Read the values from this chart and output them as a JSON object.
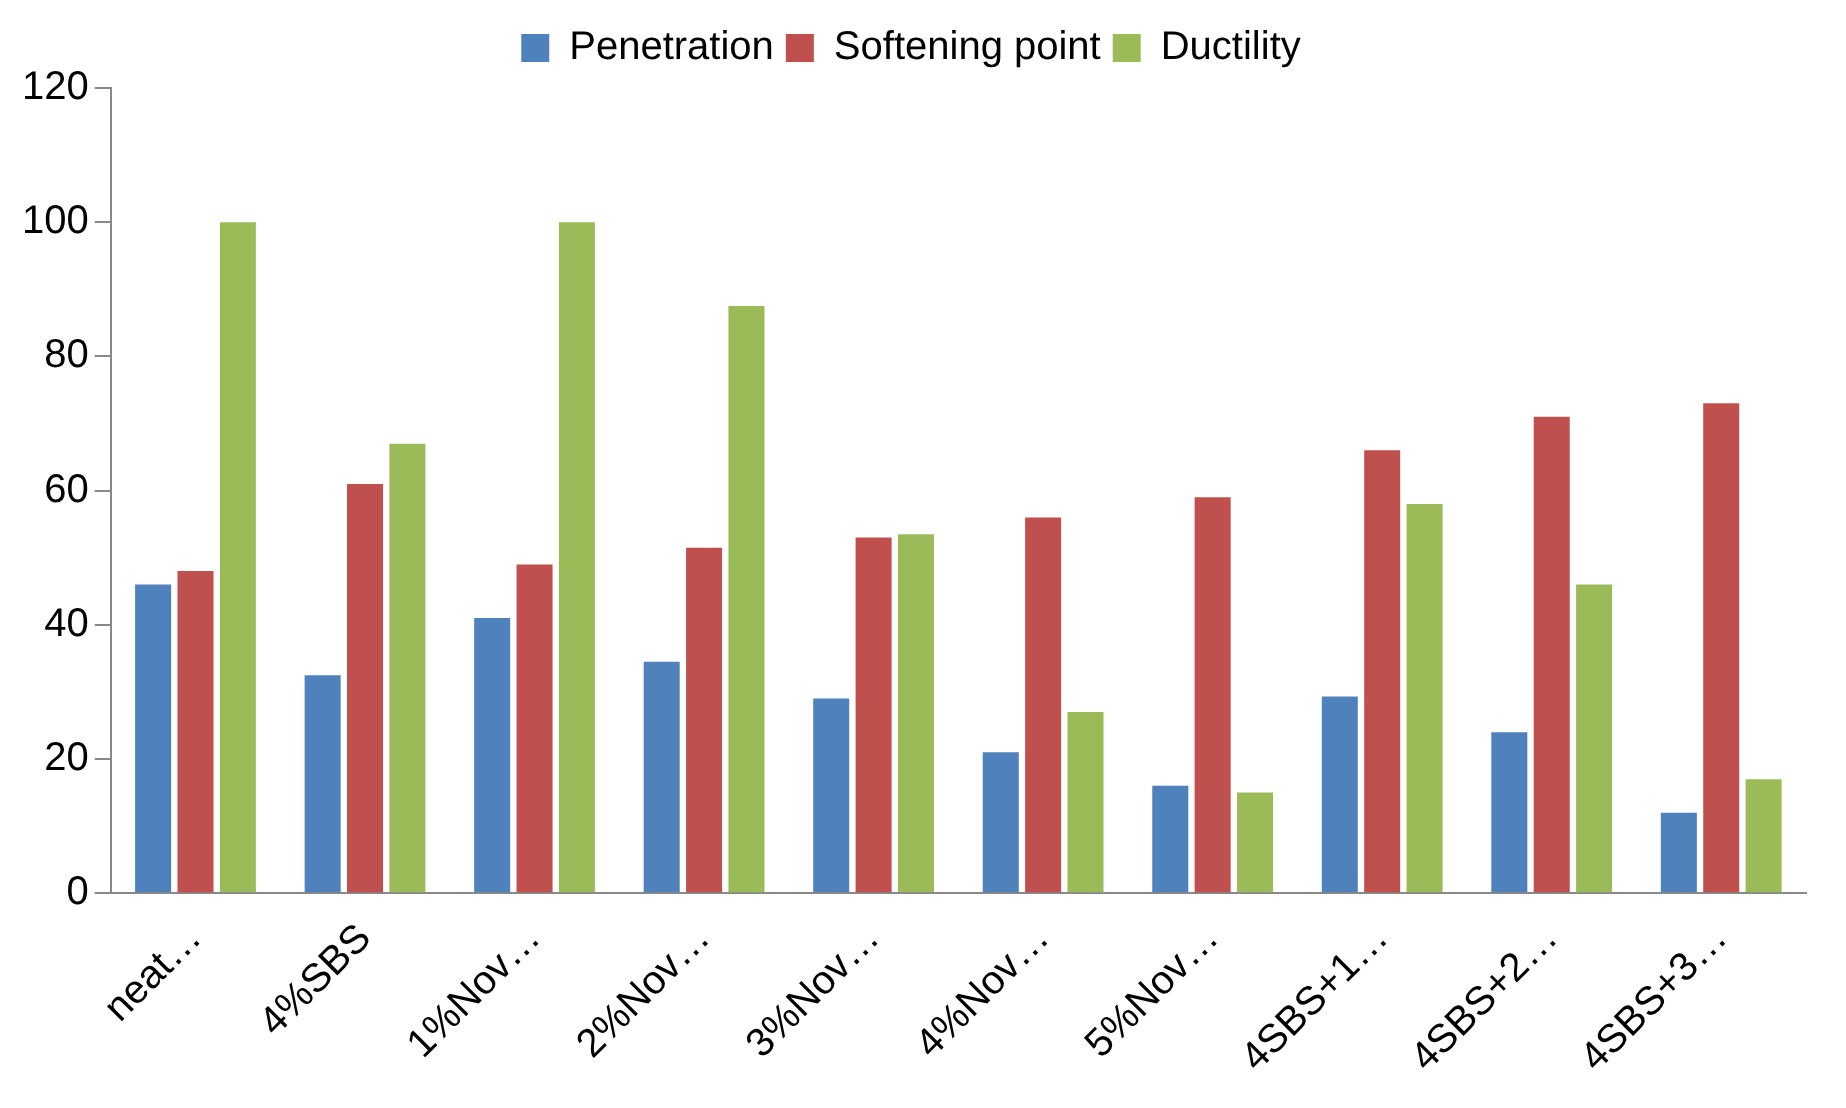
{
  "chart_data": {
    "type": "bar",
    "categories": [
      "neat…",
      "4%SBS",
      "1%Nov…",
      "2%Nov…",
      "3%Nov…",
      "4%Nov…",
      "5%Nov…",
      "4SBS+1…",
      "4SBS+2…",
      "4SBS+3…"
    ],
    "series": [
      {
        "name": "Penetration",
        "color": "#4f81bd",
        "values": [
          46,
          32.5,
          41,
          34.5,
          29,
          21,
          16,
          29.3,
          24,
          12
        ]
      },
      {
        "name": "Softening point",
        "color": "#c0504d",
        "values": [
          48,
          61,
          49,
          51.5,
          53,
          56,
          59,
          66,
          71,
          73
        ]
      },
      {
        "name": "Ductility",
        "color": "#9bbb59",
        "values": [
          100,
          67,
          100,
          87.5,
          53.5,
          27,
          15,
          58,
          46,
          17
        ]
      }
    ],
    "ylim": [
      0,
      120
    ],
    "yticks": [
      0,
      20,
      40,
      60,
      80,
      100,
      120
    ],
    "grid": false,
    "legend": "top"
  }
}
